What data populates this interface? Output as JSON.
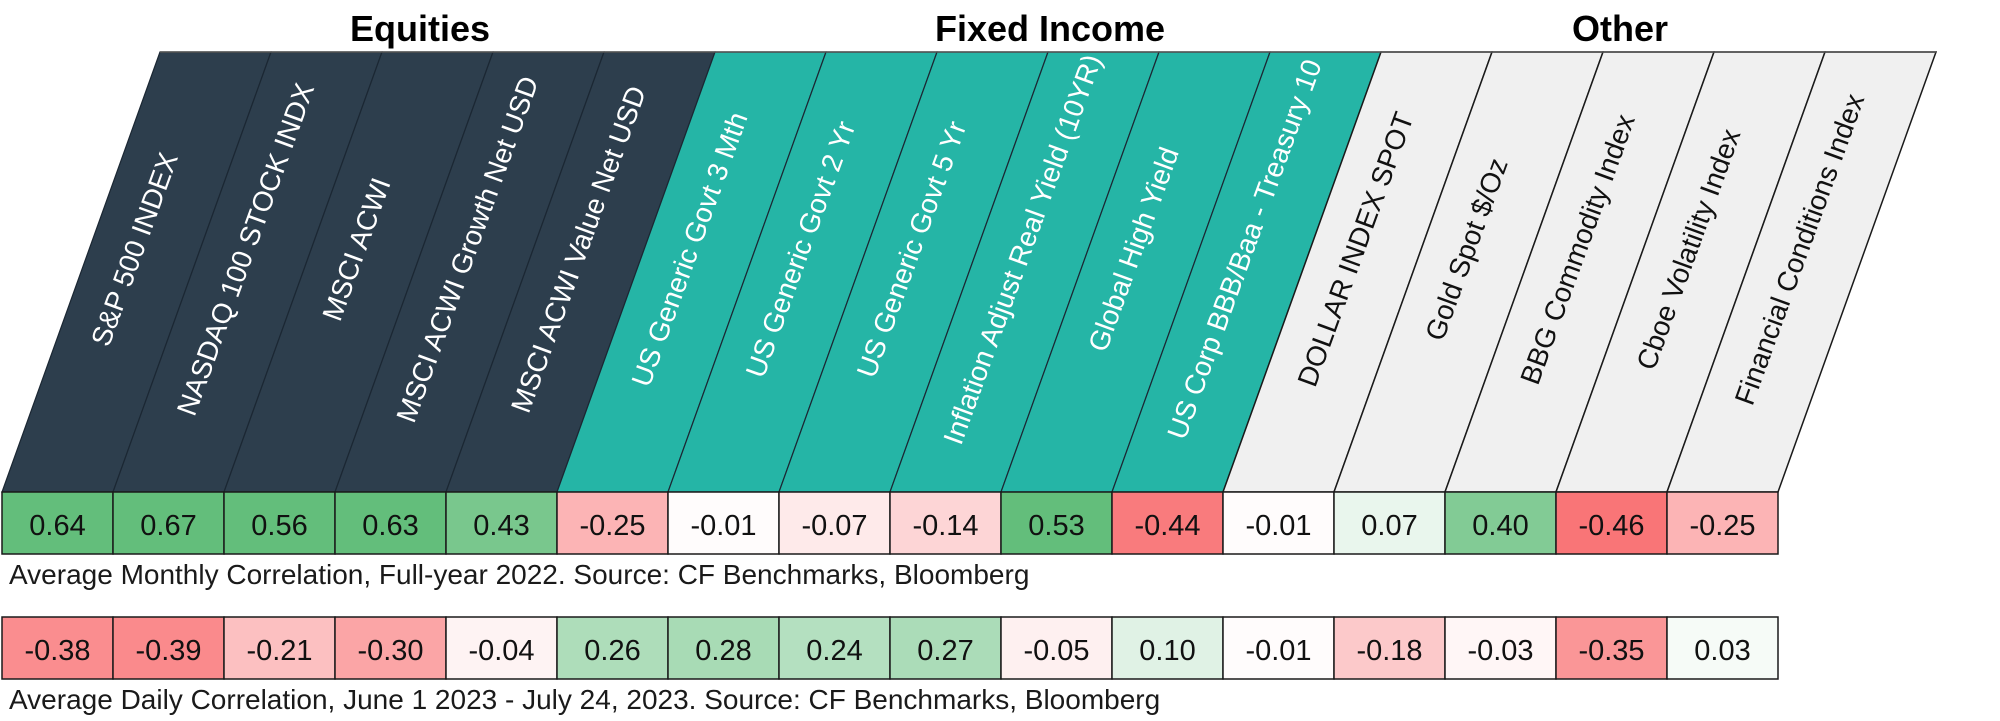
{
  "chart_data": {
    "type": "heatmap",
    "groups": [
      {
        "name": "Equities",
        "count": 5,
        "fill": "#2d3e4d"
      },
      {
        "name": "Fixed Income",
        "count": 6,
        "fill": "#25b5a6"
      },
      {
        "name": "Other",
        "count": 5,
        "fill": "#f0f0f0"
      }
    ],
    "columns": [
      "S&P 500 INDEX",
      "NASDAQ 100 STOCK INDX",
      "MSCI ACWI",
      "MSCI ACWI Growth Net USD",
      "MSCI ACWI Value Net USD",
      "US Generic Govt 3 Mth",
      "US Generic Govt 2 Yr",
      "US Generic Govt 5 Yr",
      "Inflation Adjust Real Yield (10YR)",
      "Global High Yield",
      "US Corp BBB/Baa - Treasury 10",
      "DOLLAR INDEX SPOT",
      "Gold Spot   $/Oz",
      "BBG Commodity Index",
      "Cboe Volatility Index",
      "Financial Conditions Index"
    ],
    "rows": [
      {
        "caption": "Average Monthly Correlation, Full-year 2022. Source: CF Benchmarks, Bloomberg",
        "values": [
          "0.64",
          "0.67",
          "0.56",
          "0.63",
          "0.43",
          "-0.25",
          "-0.01",
          "-0.07",
          "-0.14",
          "0.53",
          "-0.44",
          "-0.01",
          "0.07",
          "0.40",
          "-0.46",
          "-0.25"
        ]
      },
      {
        "caption": "Average Daily Correlation, June 1 2023 - July 24, 2023. Source: CF Benchmarks, Bloomberg",
        "values": [
          "-0.38",
          "-0.39",
          "-0.21",
          "-0.30",
          "-0.04",
          "0.26",
          "0.28",
          "0.24",
          "0.27",
          "-0.05",
          "0.10",
          "-0.01",
          "-0.18",
          "-0.03",
          "-0.35",
          "0.03"
        ]
      }
    ],
    "color_scale": {
      "negative": "#f8696b",
      "neutral": "#ffffff",
      "positive": "#63be7b"
    }
  }
}
